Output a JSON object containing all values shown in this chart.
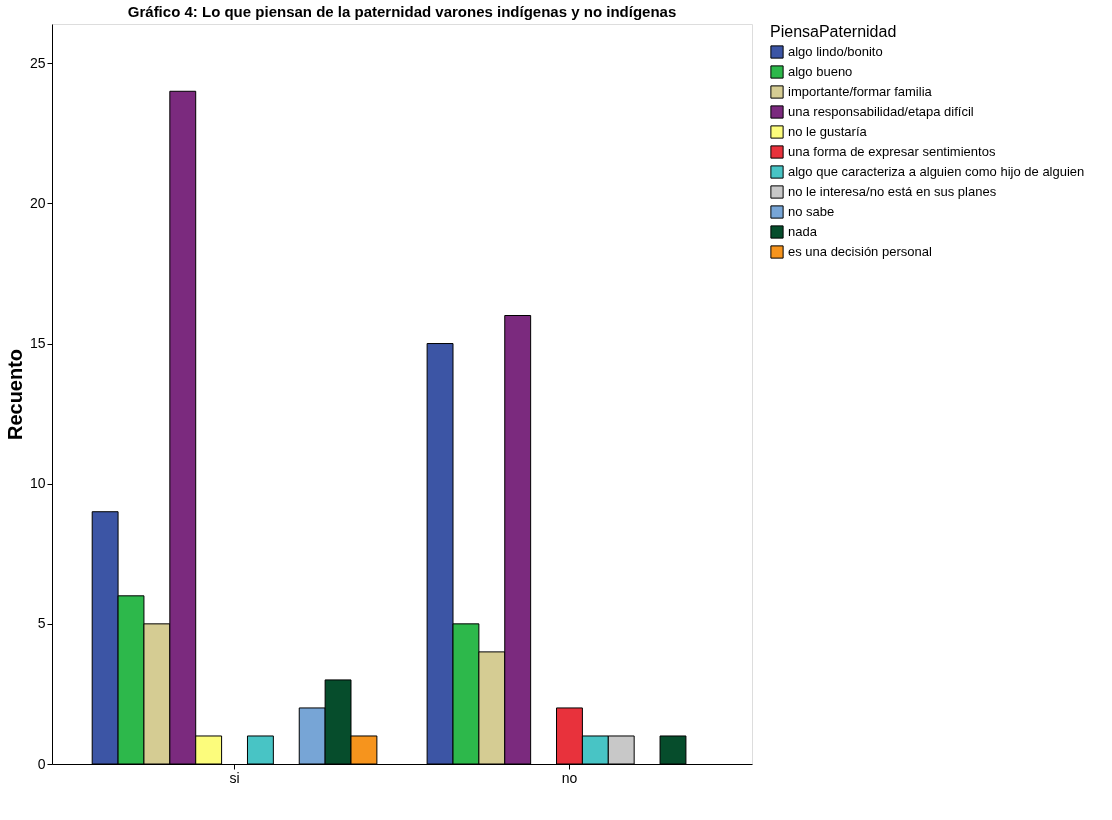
{
  "chart_data": {
    "type": "bar",
    "title": "Gráfico 4: Lo que piensan de la paternidad varones indígenas y no indígenas",
    "ylabel": "Recuento",
    "legend_title": "PiensaPaternidad",
    "categories": [
      "si",
      "no"
    ],
    "series": [
      {
        "name": "algo lindo/bonito",
        "color": "#3c55a5",
        "values": [
          9,
          15
        ]
      },
      {
        "name": "algo bueno",
        "color": "#2db84b",
        "values": [
          6,
          5
        ]
      },
      {
        "name": "importante/formar familia",
        "color": "#d5cc93",
        "values": [
          5,
          4
        ]
      },
      {
        "name": "una responsabilidad/etapa difícil",
        "color": "#7b2a7e",
        "values": [
          24,
          16
        ]
      },
      {
        "name": "no le gustaría",
        "color": "#fcfc7c",
        "values": [
          1,
          null
        ]
      },
      {
        "name": "una forma de expresar sentimientos",
        "color": "#e8323c",
        "values": [
          null,
          2
        ]
      },
      {
        "name": "algo que caracteriza a alguien como hijo de alguien",
        "color": "#48c4c5",
        "values": [
          1,
          1
        ]
      },
      {
        "name": "no le interesa/no está en sus planes",
        "color": "#c8c8c8",
        "values": [
          null,
          1
        ]
      },
      {
        "name": "no sabe",
        "color": "#77a5d6",
        "values": [
          2,
          null
        ]
      },
      {
        "name": "nada",
        "color": "#064d2c",
        "values": [
          3,
          1
        ]
      },
      {
        "name": "es una decisión personal",
        "color": "#f6941d",
        "values": [
          1,
          null
        ]
      }
    ],
    "ylim": [
      0,
      26.4
    ],
    "yticks": [
      0,
      5,
      10,
      15,
      20,
      25
    ],
    "grid": false,
    "legend": "right"
  }
}
